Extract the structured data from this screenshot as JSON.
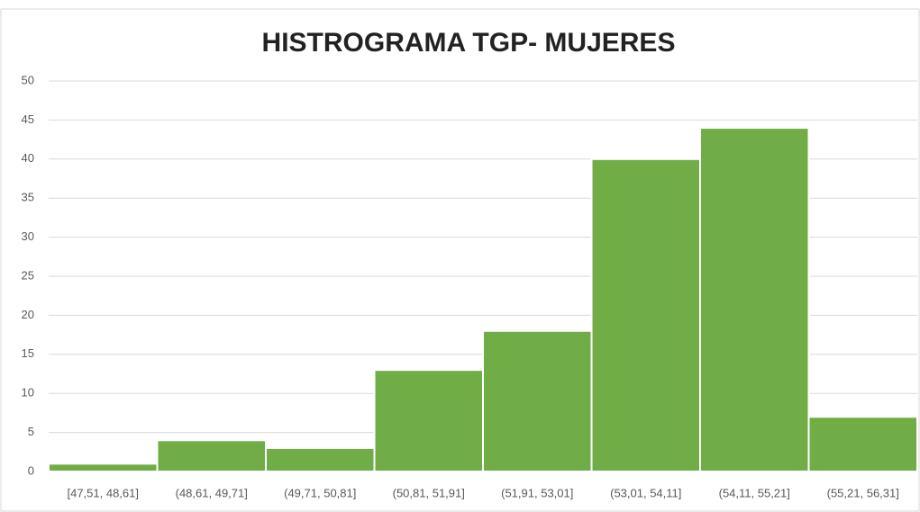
{
  "chart_data": {
    "type": "bar",
    "title": "HISTROGRAMA TGP- MUJERES",
    "categories": [
      "[47,51, 48,61]",
      "(48,61, 49,71]",
      "(49,71, 50,81]",
      "(50,81, 51,91]",
      "(51,91, 53,01]",
      "(53,01, 54,11]",
      "(54,11, 55,21]",
      "(55,21, 56,31]"
    ],
    "values": [
      1,
      4,
      3,
      13,
      18,
      40,
      44,
      7
    ],
    "color": "#70ad47",
    "ylim": [
      0,
      50
    ],
    "yticks": [
      0,
      5,
      10,
      15,
      20,
      25,
      30,
      35,
      40,
      45,
      50
    ],
    "grid": true
  }
}
